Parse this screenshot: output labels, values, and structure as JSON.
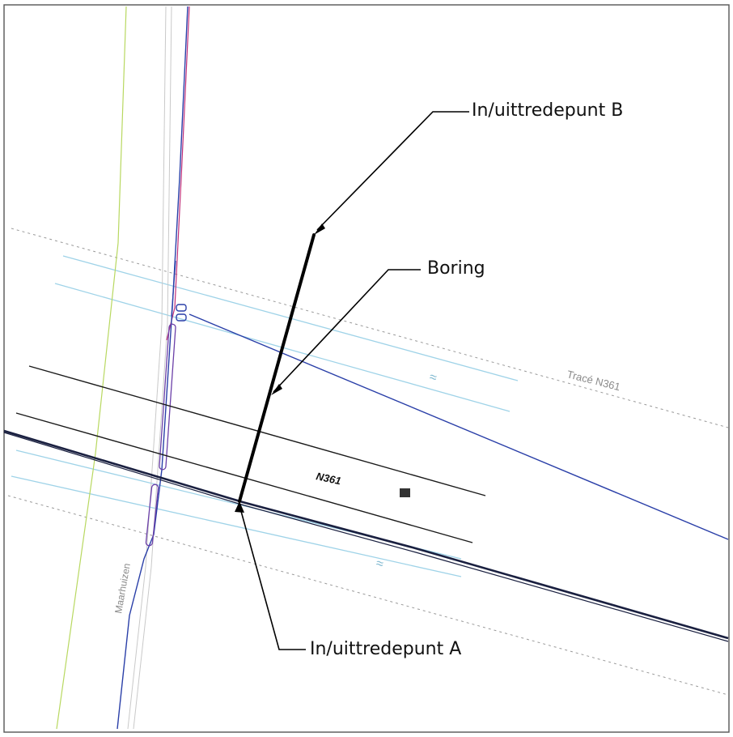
{
  "callouts": {
    "point_b": "In/uittredepunt B",
    "boring": "Boring",
    "point_a": "In/uittredepunt A"
  },
  "map_labels": {
    "road": "N361",
    "trace": "Tracé N361",
    "street": "Maarhuizen",
    "water_symbol_1": "≈",
    "water_symbol_2": "≈"
  },
  "colors": {
    "water": "#9fd3e8",
    "road": "#1a1a1a",
    "blue_line": "#2a3fa8",
    "pink_line": "#c0307a",
    "green_line": "#b8d860",
    "boring": "#000000",
    "trace_dashed": "#9a9a9a"
  }
}
